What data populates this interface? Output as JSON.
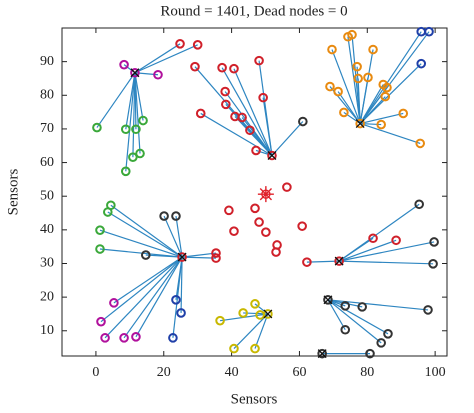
{
  "chart_data": {
    "type": "scatter",
    "title": "Round = 1401, Dead nodes = 0",
    "xlabel": "Sensors",
    "ylabel": "Sensors",
    "xlim": [
      -10,
      103.5
    ],
    "ylim": [
      2.5,
      100
    ],
    "xticks": [
      0,
      20,
      40,
      60,
      80,
      100
    ],
    "yticks": [
      10,
      20,
      30,
      40,
      50,
      60,
      70,
      80,
      90
    ],
    "line_color": "#2e86c1",
    "base_station": {
      "x": 50.1,
      "y": 50.6,
      "color": "#e0202a"
    },
    "clusters": [
      {
        "head_x": 11.5,
        "head_y": 86.7,
        "head_color": "#b0109c",
        "x": [
          8.3,
          24.8,
          30,
          18.3,
          0.3,
          8.8,
          11.8,
          13.9,
          10.9,
          8.8,
          13
        ],
        "y": [
          89.1,
          95.3,
          95,
          86.1,
          70.4,
          69.9,
          69.9,
          72.5,
          61.6,
          57.4,
          62.7
        ],
        "colors": [
          "#b0109c",
          "#d0202a",
          "#d0202a",
          "#b0109c",
          "#3aa83a",
          "#3aa83a",
          "#3aa83a",
          "#3aa83a",
          "#3aa83a",
          "#3aa83a",
          "#3aa83a"
        ]
      },
      {
        "head_x": 51.9,
        "head_y": 62.1,
        "head_color": "#d0202a",
        "x": [
          29.2,
          37.2,
          40.7,
          48.1,
          49.3,
          38.1,
          38.3,
          41,
          43.1,
          30.9,
          45.4,
          47.2,
          61
        ],
        "y": [
          88.5,
          88.2,
          87.9,
          90.3,
          79.3,
          81.1,
          77.3,
          73.7,
          73.4,
          74.6,
          69.6,
          63.6,
          72.2
        ],
        "colors": [
          "#d0202a",
          "#d0202a",
          "#d0202a",
          "#d0202a",
          "#d0202a",
          "#d0202a",
          "#d0202a",
          "#d0202a",
          "#d0202a",
          "#d0202a",
          "#d0202a",
          "#d0202a",
          "#333333"
        ]
      },
      {
        "head_x": 77.9,
        "head_y": 71.6,
        "head_color": "#e88a10",
        "x": [
          69.6,
          74.3,
          75.5,
          81.7,
          77,
          77.3,
          80.2,
          84.7,
          85.8,
          85.3,
          69,
          71.4,
          73.1,
          84.1,
          90.6,
          95.9,
          98.2,
          95.9,
          95.6
        ],
        "y": [
          93.6,
          97.4,
          98,
          93.6,
          88.5,
          85,
          85.3,
          83.2,
          82.3,
          79.6,
          82.6,
          81.1,
          74.9,
          71.3,
          74.6,
          98.9,
          98.9,
          89.4,
          65.7
        ],
        "colors": [
          "#e88a10",
          "#e88a10",
          "#e88a10",
          "#e88a10",
          "#e88a10",
          "#e88a10",
          "#e88a10",
          "#e88a10",
          "#e88a10",
          "#e88a10",
          "#e88a10",
          "#e88a10",
          "#e88a10",
          "#e88a10",
          "#e88a10",
          "#1f3fa8",
          "#1f3fa8",
          "#1f3fa8",
          "#e88a10"
        ]
      },
      {
        "head_x": 25.4,
        "head_y": 31.9,
        "head_color": "#d0202a",
        "x": [
          4.4,
          3.5,
          1.2,
          1.2,
          14.7,
          20.1,
          23.6,
          35.4,
          35.4,
          23.6,
          25.1,
          22.7,
          5.3,
          1.5,
          2.7,
          8.3,
          11.8
        ],
        "y": [
          47.3,
          45.3,
          39.9,
          34.3,
          32.5,
          44.1,
          44.1,
          33.1,
          31.6,
          19.2,
          15.3,
          7.9,
          18.3,
          12.7,
          7.9,
          7.9,
          8.2
        ],
        "colors": [
          "#3aa83a",
          "#3aa83a",
          "#3aa83a",
          "#3aa83a",
          "#333333",
          "#333333",
          "#333333",
          "#d0202a",
          "#d0202a",
          "#1f3fa8",
          "#1f3fa8",
          "#1f3fa8",
          "#b0109c",
          "#b0109c",
          "#b0109c",
          "#b0109c",
          "#b0109c"
        ]
      },
      {
        "head_x": 71.7,
        "head_y": 30.7,
        "head_color": "#d0202a",
        "x": [
          62.2,
          81.7,
          88.5,
          95.3,
          99.7,
          99.4
        ],
        "y": [
          30.4,
          37.5,
          36.9,
          47.6,
          36.4,
          29.9
        ],
        "colors": [
          "#d0202a",
          "#d0202a",
          "#d0202a",
          "#333333",
          "#333333",
          "#333333"
        ]
      },
      {
        "head_x": 50.7,
        "head_y": 15,
        "head_color": "#c8b800",
        "x": [
          46.9,
          43.4,
          48.4,
          36.6,
          40.7,
          46.9
        ],
        "y": [
          18,
          15.3,
          14.7,
          13,
          4.7,
          4.7
        ],
        "colors": [
          "#c8b800",
          "#c8b800",
          "#c8b800",
          "#c8b800",
          "#c8b800",
          "#c8b800"
        ]
      },
      {
        "head_x": 68.4,
        "head_y": 19.2,
        "head_color": "#333333",
        "x": [
          73.5,
          78.5,
          73.5,
          86.1,
          84.1,
          97.9
        ],
        "y": [
          17.4,
          17.1,
          10.3,
          9.1,
          6.4,
          16.2
        ],
        "colors": [
          "#333333",
          "#333333",
          "#333333",
          "#333333",
          "#333333",
          "#333333"
        ]
      },
      {
        "head_x": 66.7,
        "head_y": 3.2,
        "head_color": "#333333",
        "x": [
          80.8
        ],
        "y": [
          3.2
        ],
        "colors": [
          "#333333"
        ]
      }
    ],
    "isolated": {
      "color": "#d0202a",
      "x": [
        46.9,
        39.2,
        56.3,
        40.7,
        48.1,
        50.1,
        60.8,
        53.4,
        53.1
      ],
      "y": [
        46.4,
        45.8,
        52.7,
        39.6,
        42.3,
        39.3,
        41.1,
        35.5,
        33.4
      ]
    }
  }
}
